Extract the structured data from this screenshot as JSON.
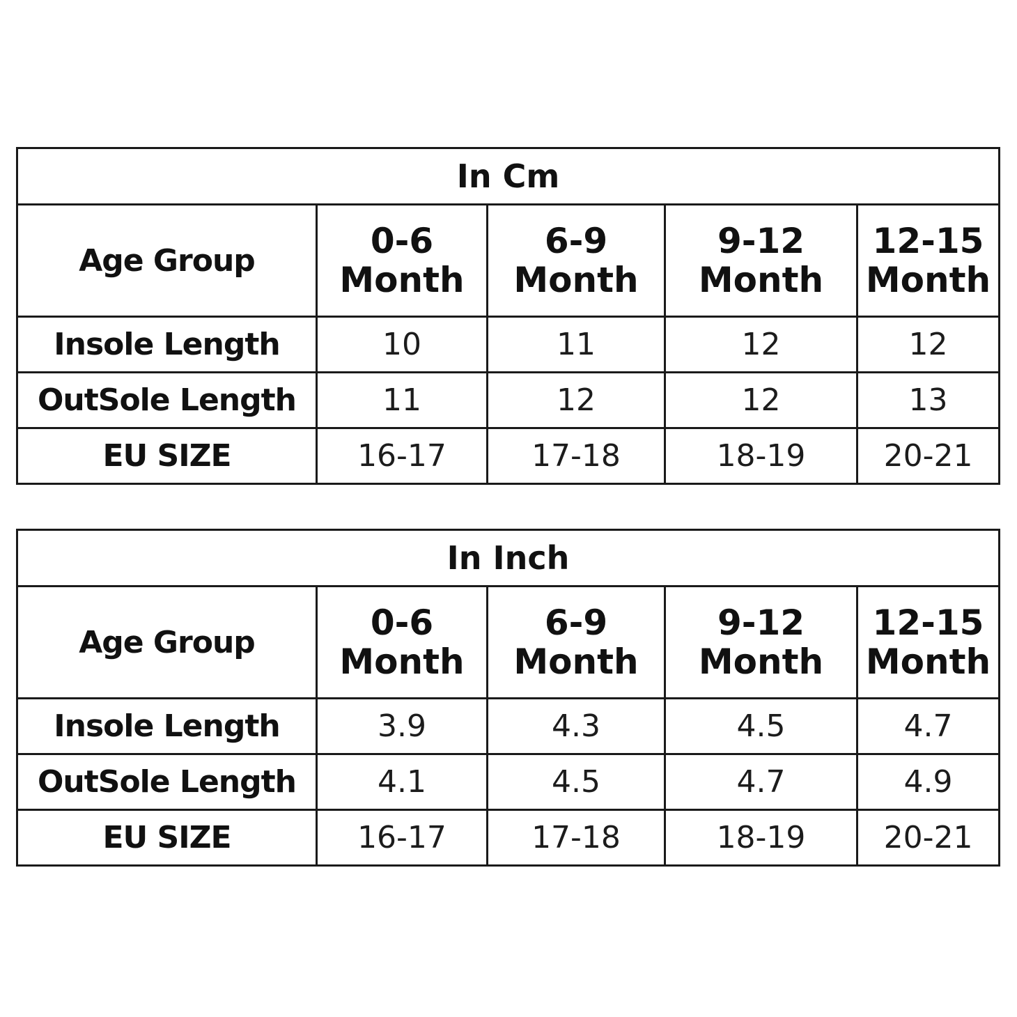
{
  "tables": [
    {
      "title": "In Cm",
      "age_group_label": "Age Group",
      "columns": [
        {
          "range": "0-6",
          "unit": "Month"
        },
        {
          "range": "6-9",
          "unit": "Month"
        },
        {
          "range": "9-12",
          "unit": "Month"
        },
        {
          "range": "12-15",
          "unit": "Month"
        }
      ],
      "rows": [
        {
          "label": "Insole Length",
          "values": [
            "10",
            "11",
            "12",
            "12"
          ]
        },
        {
          "label": "OutSole Length",
          "values": [
            "11",
            "12",
            "12",
            "13"
          ]
        },
        {
          "label": "EU SIZE",
          "values": [
            "16-17",
            "17-18",
            "18-19",
            "20-21"
          ]
        }
      ]
    },
    {
      "title": "In Inch",
      "age_group_label": "Age Group",
      "columns": [
        {
          "range": "0-6",
          "unit": "Month"
        },
        {
          "range": "6-9",
          "unit": "Month"
        },
        {
          "range": "9-12",
          "unit": "Month"
        },
        {
          "range": "12-15",
          "unit": "Month"
        }
      ],
      "rows": [
        {
          "label": "Insole Length",
          "values": [
            "3.9",
            "4.3",
            "4.5",
            "4.7"
          ]
        },
        {
          "label": "OutSole Length",
          "values": [
            "4.1",
            "4.5",
            "4.7",
            "4.9"
          ]
        },
        {
          "label": "EU SIZE",
          "values": [
            "16-17",
            "17-18",
            "18-19",
            "20-21"
          ]
        }
      ]
    }
  ]
}
